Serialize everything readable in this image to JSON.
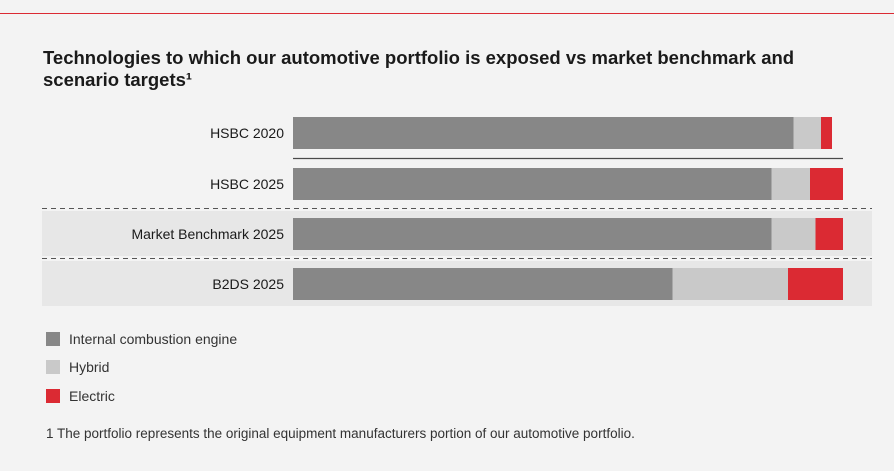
{
  "chart_data": {
    "type": "bar",
    "stacked": true,
    "orientation": "horizontal",
    "title": "Technologies to which our automotive portfolio is exposed vs market benchmark and scenario targets¹",
    "categories": [
      "HSBC 2020",
      "HSBC 2025",
      "Market Benchmark 2025",
      "B2DS 2025"
    ],
    "series": [
      {
        "name": "Internal combustion engine",
        "color": "#878787",
        "values": [
          91,
          87,
          87,
          69
        ]
      },
      {
        "name": "Hybrid",
        "color": "#c9c9c9",
        "values": [
          5,
          7,
          8,
          21
        ]
      },
      {
        "name": "Electric",
        "color": "#db2a33",
        "values": [
          2,
          6,
          5,
          10
        ]
      }
    ],
    "xlim": [
      0,
      100
    ],
    "xlabel": "",
    "ylabel": "",
    "legend_position": "bottom-left",
    "grid": false
  },
  "footnote": "1 The portfolio represents the original equipment manufacturers portion of our automotive portfolio.",
  "colors": {
    "accent": "#db2a33",
    "panel_background": "#f3f3f3",
    "highlight_band": "#e7e7e7"
  }
}
